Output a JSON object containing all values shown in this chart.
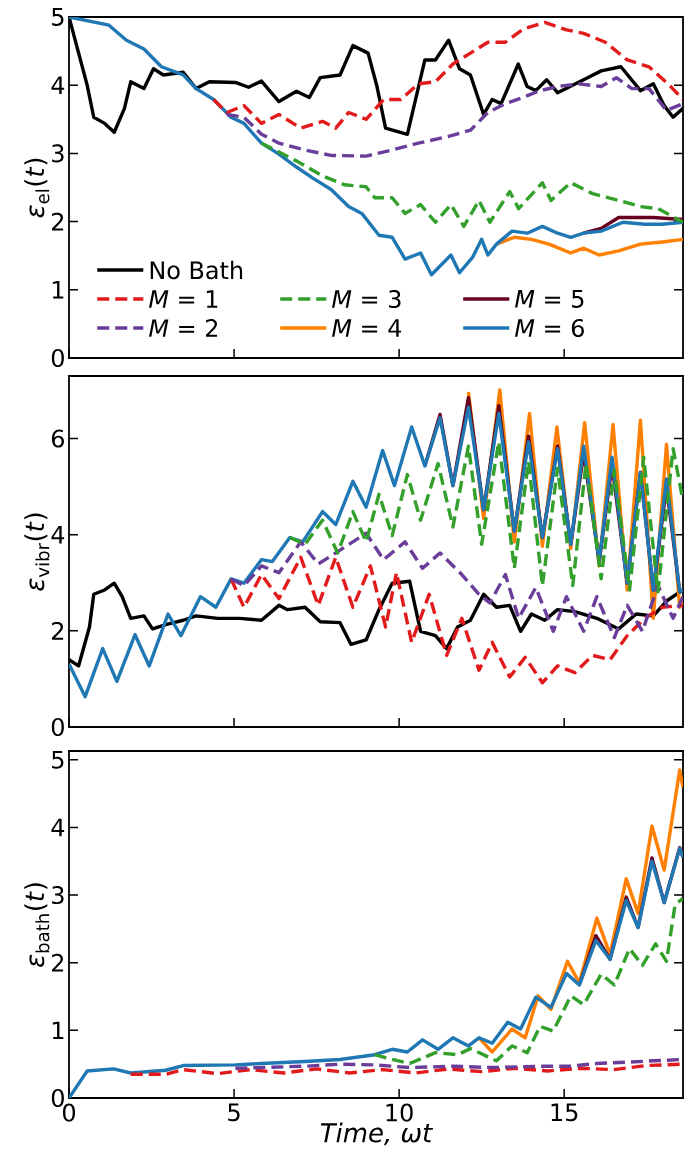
{
  "chart_data": [
    {
      "type": "line",
      "ylabel": "*ε*$_{el}$(*t*)",
      "xlim": [
        0,
        18.6
      ],
      "xticks": [
        0,
        5,
        10,
        15
      ],
      "ylim": [
        0,
        5
      ],
      "yticks": [
        0,
        1,
        2,
        3,
        4,
        5
      ],
      "tick_labels": "y",
      "legend": "bottom left",
      "series": [
        {
          "name": "No Bath",
          "color": "#000000",
          "x": [
            0,
            0.55,
            0.75,
            1.08,
            1.37,
            1.68,
            1.87,
            2.27,
            2.56,
            2.86,
            3.46,
            3.85,
            4.25,
            5.04,
            5.44,
            5.83,
            6.36,
            6.89,
            7.28,
            7.61,
            8.21,
            8.6,
            9.06,
            9.33,
            9.59,
            10.25,
            10.78,
            11.1,
            11.5,
            11.83,
            12.16,
            12.56,
            12.82,
            13.09,
            13.61,
            13.88,
            14.14,
            14.47,
            14.8,
            15.59,
            16.12,
            16.72,
            17.31,
            17.7,
            18.03,
            18.3,
            18.6
          ],
          "values": [
            5,
            4.0,
            3.53,
            3.44,
            3.31,
            3.66,
            4.05,
            3.95,
            4.24,
            4.15,
            4.19,
            3.95,
            4.05,
            4.04,
            3.97,
            4.06,
            3.76,
            3.91,
            3.82,
            4.11,
            4.15,
            4.58,
            4.47,
            3.98,
            3.37,
            3.28,
            4.37,
            4.37,
            4.66,
            4.24,
            4.15,
            3.57,
            3.79,
            3.73,
            4.31,
            3.98,
            3.92,
            4.08,
            3.89,
            4.08,
            4.21,
            4.27,
            3.92,
            4.02,
            3.7,
            3.53,
            3.66
          ]
        },
        {
          "name": "*M* = 1",
          "color": "#e31a1c",
          "line_style": "dashed",
          "x": [
            4.38,
            4.78,
            5.3,
            5.83,
            6.36,
            7.02,
            7.68,
            8.08,
            8.47,
            9.0,
            9.53,
            10.05,
            10.58,
            11.1,
            11.63,
            12.16,
            12.69,
            13.22,
            13.75,
            14.41,
            15.07,
            15.59,
            16.25,
            16.91,
            17.57,
            18.23,
            18.6
          ],
          "values": [
            3.79,
            3.6,
            3.7,
            3.44,
            3.57,
            3.37,
            3.47,
            3.37,
            3.6,
            3.5,
            3.79,
            3.79,
            4.02,
            4.05,
            4.31,
            4.47,
            4.63,
            4.63,
            4.82,
            4.92,
            4.81,
            4.76,
            4.63,
            4.37,
            4.27,
            3.98,
            3.79
          ]
        },
        {
          "name": "*M* = 2",
          "color": "#6a3d9a",
          "line_style": "dashed",
          "x": [
            4.78,
            5.3,
            5.83,
            6.36,
            7.15,
            7.94,
            9.0,
            9.79,
            10.58,
            11.5,
            12.16,
            12.69,
            13.22,
            13.75,
            14.27,
            14.8,
            15.46,
            16.12,
            16.58,
            17.05,
            17.57,
            18.1,
            18.6
          ],
          "values": [
            3.57,
            3.53,
            3.28,
            3.15,
            3.05,
            2.97,
            2.96,
            3.05,
            3.15,
            3.25,
            3.34,
            3.6,
            3.73,
            3.82,
            3.92,
            3.98,
            4.02,
            3.98,
            4.11,
            3.95,
            3.95,
            3.63,
            3.73
          ]
        },
        {
          "name": "*M* = 3",
          "color": "#33a02c",
          "line_style": "dashed",
          "x": [
            5.83,
            6.36,
            6.89,
            7.68,
            8.34,
            9.0,
            9.26,
            9.79,
            10.18,
            10.65,
            11.1,
            11.57,
            11.96,
            12.42,
            12.75,
            13.35,
            13.62,
            14.34,
            14.6,
            15.2,
            15.86,
            16.65,
            17.31,
            17.84,
            18.6
          ],
          "values": [
            3.15,
            3.02,
            2.89,
            2.67,
            2.54,
            2.51,
            2.35,
            2.35,
            2.12,
            2.25,
            1.99,
            2.25,
            1.93,
            2.31,
            1.99,
            2.44,
            2.19,
            2.57,
            2.31,
            2.57,
            2.41,
            2.31,
            2.22,
            2.19,
            1.99
          ]
        },
        {
          "name": "*M* = 4",
          "color": "#ff7f00",
          "x": [
            12.95,
            13.49,
            14.01,
            14.54,
            15.2,
            15.59,
            16.06,
            16.65,
            17.31,
            17.97,
            18.6
          ],
          "values": [
            1.67,
            1.77,
            1.74,
            1.67,
            1.54,
            1.61,
            1.51,
            1.57,
            1.67,
            1.7,
            1.74
          ]
        },
        {
          "name": "*M* = 5",
          "color": "#67001f",
          "x": [
            15.59,
            16.12,
            16.65,
            17.18,
            17.7,
            18.6
          ],
          "values": [
            1.83,
            1.9,
            2.06,
            2.06,
            2.06,
            2.03
          ]
        },
        {
          "name": "*M* = 6",
          "color": "#1f78b4",
          "x": [
            0,
            1.21,
            1.74,
            2.27,
            2.8,
            3.46,
            3.85,
            4.38,
            4.91,
            5.3,
            5.83,
            6.36,
            6.89,
            7.41,
            7.94,
            8.47,
            8.87,
            9.39,
            9.79,
            10.18,
            10.65,
            10.98,
            11.57,
            11.83,
            12.23,
            12.5,
            12.69,
            12.95,
            13.42,
            13.88,
            14.34,
            14.8,
            15.2,
            15.59,
            16.12,
            16.78,
            17.44,
            17.97,
            18.6
          ],
          "values": [
            5,
            4.88,
            4.66,
            4.53,
            4.27,
            4.15,
            3.95,
            3.79,
            3.53,
            3.44,
            3.15,
            2.99,
            2.8,
            2.63,
            2.47,
            2.22,
            2.12,
            1.8,
            1.77,
            1.45,
            1.54,
            1.22,
            1.51,
            1.25,
            1.48,
            1.74,
            1.51,
            1.67,
            1.86,
            1.83,
            1.93,
            1.83,
            1.77,
            1.83,
            1.86,
            1.99,
            1.96,
            1.96,
            1.99
          ]
        }
      ]
    },
    {
      "type": "line",
      "ylabel": "*ε*$_{vibr}$(*t*)",
      "xlim": [
        0,
        18.6
      ],
      "xticks": [
        0,
        5,
        10,
        15
      ],
      "ylim": [
        0,
        7.3
      ],
      "yticks": [
        0,
        2,
        4,
        6
      ],
      "tick_labels": "y",
      "series": [
        {
          "color": "#000000",
          "x": [
            0,
            0.29,
            0.62,
            0.75,
            1.08,
            1.37,
            1.61,
            1.87,
            2.27,
            2.53,
            2.93,
            3.46,
            3.85,
            4.51,
            5.17,
            5.83,
            6.36,
            6.62,
            7.15,
            7.61,
            8.21,
            8.54,
            9.0,
            9.39,
            9.79,
            10.32,
            10.65,
            11.1,
            11.44,
            11.77,
            12.16,
            12.56,
            12.95,
            13.35,
            13.68,
            14.01,
            14.41,
            14.8,
            15.33,
            15.99,
            16.65,
            17.18,
            17.7,
            18.1,
            18.6
          ],
          "values": [
            1.4,
            1.27,
            2.08,
            2.76,
            2.85,
            2.99,
            2.71,
            2.26,
            2.31,
            2.04,
            2.13,
            2.22,
            2.31,
            2.26,
            2.26,
            2.22,
            2.53,
            2.44,
            2.49,
            2.19,
            2.17,
            1.72,
            1.81,
            2.44,
            2.99,
            3.03,
            1.99,
            1.9,
            1.63,
            2.08,
            2.22,
            2.76,
            2.49,
            2.53,
            1.99,
            2.35,
            2.22,
            2.44,
            2.4,
            2.26,
            2.04,
            2.35,
            2.31,
            2.62,
            2.85
          ]
        },
        {
          "color": "#e31a1c",
          "line_style": "dashed",
          "x": [
            4.91,
            5.3,
            5.83,
            6.36,
            7.02,
            7.55,
            8.08,
            8.6,
            9.13,
            9.59,
            9.92,
            10.38,
            10.91,
            11.44,
            11.9,
            12.42,
            12.82,
            13.35,
            13.82,
            14.34,
            14.8,
            15.33,
            15.86,
            16.39,
            16.91,
            17.44,
            17.97,
            18.6
          ],
          "values": [
            3.08,
            2.49,
            3.17,
            2.67,
            3.53,
            2.53,
            3.53,
            2.49,
            3.35,
            2.08,
            3.21,
            1.76,
            2.76,
            1.49,
            2.26,
            1.18,
            1.76,
            1.04,
            1.45,
            0.92,
            1.27,
            1.13,
            1.49,
            1.4,
            1.9,
            2.26,
            2.49,
            2.53
          ]
        },
        {
          "color": "#6a3d9a",
          "line_style": "dashed",
          "x": [
            4.91,
            5.3,
            5.83,
            6.36,
            7.02,
            7.55,
            8.08,
            9.0,
            9.53,
            10.18,
            10.71,
            11.24,
            11.9,
            12.42,
            12.75,
            13.22,
            13.62,
            14.14,
            14.67,
            15.07,
            15.59,
            15.99,
            16.52,
            16.91,
            17.37,
            17.84,
            18.3,
            18.6
          ],
          "values": [
            3.08,
            2.94,
            3.35,
            3.21,
            3.85,
            3.39,
            3.62,
            4.03,
            3.48,
            3.85,
            3.3,
            3.62,
            3.17,
            2.76,
            2.58,
            3.17,
            2.26,
            2.9,
            1.99,
            2.71,
            1.99,
            2.71,
            1.86,
            2.53,
            1.99,
            2.94,
            2.26,
            2.71
          ]
        },
        {
          "color": "#33a02c",
          "line_style": "dashed",
          "x": [
            6.69,
            7.15,
            7.68,
            8.14,
            8.6,
            9.0,
            9.39,
            9.79,
            10.25,
            10.65,
            11.18,
            11.63,
            12.1,
            12.5,
            13.02,
            13.49,
            13.92,
            14.34,
            14.8,
            15.26,
            15.66,
            16.12,
            16.52,
            16.98,
            17.41,
            17.84,
            18.3,
            18.6
          ],
          "values": [
            3.94,
            3.8,
            4.3,
            3.62,
            4.48,
            3.85,
            4.84,
            3.98,
            5.25,
            4.3,
            5.48,
            4.16,
            5.84,
            3.8,
            5.93,
            3.3,
            5.52,
            2.94,
            5.38,
            2.94,
            5.48,
            3.08,
            5.34,
            2.85,
            5.61,
            2.81,
            5.79,
            4.7
          ]
        },
        {
          "color": "#ff7f00",
          "x": [
            12.1,
            12.56,
            13.05,
            13.49,
            13.95,
            14.34,
            14.78,
            15.2,
            15.62,
            16.06,
            16.48,
            16.91,
            17.31,
            17.7,
            18.1,
            18.5,
            18.6
          ],
          "values": [
            6.97,
            4.34,
            7.01,
            3.85,
            6.52,
            3.76,
            6.24,
            3.71,
            6.33,
            3.35,
            6.29,
            2.85,
            6.38,
            2.26,
            5.88,
            2.49,
            2.62
          ]
        },
        {
          "color": "#67001f",
          "x": [
            10.78,
            11.24,
            11.63,
            12.1,
            12.56,
            13.02,
            13.49,
            13.92,
            14.34,
            14.8,
            15.2,
            15.59,
            16.06,
            16.45,
            16.91,
            17.31,
            17.7,
            18.1,
            18.5,
            18.6
          ],
          "values": [
            5.43,
            6.5,
            5.02,
            6.85,
            4.52,
            6.68,
            4.07,
            6.05,
            3.94,
            5.84,
            3.8,
            5.7,
            3.44,
            5.45,
            2.99,
            5.3,
            2.85,
            5.0,
            2.81,
            2.85
          ]
        },
        {
          "color": "#1f78b4",
          "x": [
            0,
            0.49,
            1.02,
            1.45,
            2.0,
            2.43,
            3.0,
            3.39,
            3.98,
            4.45,
            4.91,
            5.3,
            5.83,
            6.16,
            6.69,
            7.08,
            7.68,
            8.08,
            8.6,
            9.0,
            9.5,
            9.86,
            10.38,
            10.78,
            11.24,
            11.63,
            12.1,
            12.56,
            13.02,
            13.49,
            13.92,
            14.34,
            14.8,
            15.2,
            15.59,
            16.06,
            16.45,
            16.91,
            17.31,
            17.7,
            18.1,
            18.5,
            18.6
          ],
          "values": [
            1.31,
            0.63,
            1.63,
            0.95,
            1.92,
            1.27,
            2.35,
            1.9,
            2.71,
            2.49,
            3.08,
            2.99,
            3.48,
            3.44,
            3.94,
            3.85,
            4.48,
            4.21,
            5.11,
            4.57,
            5.75,
            5.02,
            6.24,
            5.43,
            6.43,
            5.02,
            6.65,
            4.52,
            6.52,
            4.07,
            5.93,
            3.94,
            5.79,
            3.8,
            5.84,
            3.44,
            5.61,
            2.99,
            5.29,
            2.85,
            5.16,
            2.81,
            2.85
          ]
        }
      ]
    },
    {
      "type": "line",
      "ylabel": "*ε*$_{bath}$(*t*)",
      "xlabel": "Time, ωt",
      "xlim": [
        0,
        18.6
      ],
      "xticks": [
        0,
        5,
        10,
        15
      ],
      "ylim": [
        0,
        5.13
      ],
      "yticks": [
        0,
        1,
        2,
        3,
        4,
        5
      ],
      "series": [
        {
          "color": "#e31a1c",
          "line_style": "dashed",
          "x": [
            1.87,
            2.93,
            3.46,
            4.5,
            5.5,
            6.5,
            7.5,
            8.5,
            9.5,
            10.5,
            11.5,
            12.5,
            13.5,
            14.5,
            15.5,
            16.5,
            17.5,
            18.6
          ],
          "values": [
            0.35,
            0.35,
            0.42,
            0.36,
            0.42,
            0.37,
            0.43,
            0.37,
            0.42,
            0.37,
            0.43,
            0.39,
            0.44,
            0.4,
            0.44,
            0.42,
            0.48,
            0.5
          ]
        },
        {
          "color": "#6a3d9a",
          "line_style": "dashed",
          "x": [
            5.04,
            7.15,
            8.21,
            9.26,
            10.32,
            11.63,
            12.82,
            14.27,
            15.2,
            15.99,
            16.91,
            17.7,
            18.6
          ],
          "values": [
            0.44,
            0.47,
            0.5,
            0.49,
            0.45,
            0.47,
            0.45,
            0.47,
            0.47,
            0.51,
            0.53,
            0.55,
            0.57
          ]
        },
        {
          "color": "#33a02c",
          "line_style": "dashed",
          "x": [
            9.26,
            9.79,
            10.32,
            11.1,
            11.77,
            12.16,
            12.95,
            13.42,
            13.88,
            14.27,
            14.67,
            15.2,
            15.59,
            16.12,
            16.52,
            16.98,
            17.37,
            17.77,
            18.1,
            18.36,
            18.6
          ],
          "values": [
            0.64,
            0.57,
            0.51,
            0.67,
            0.64,
            0.73,
            0.55,
            0.77,
            0.67,
            1.06,
            0.99,
            1.51,
            1.38,
            1.83,
            1.67,
            2.21,
            1.96,
            2.28,
            2.02,
            2.86,
            2.95
          ]
        },
        {
          "color": "#ff7f00",
          "x": [
            12.42,
            12.82,
            13.42,
            13.82,
            14.21,
            14.6,
            15.1,
            15.46,
            15.99,
            16.39,
            16.88,
            17.24,
            17.66,
            18.03,
            18.5,
            18.6
          ],
          "values": [
            0.89,
            0.68,
            1.02,
            0.89,
            1.51,
            1.31,
            2.02,
            1.7,
            2.66,
            2.12,
            3.24,
            2.73,
            4.02,
            3.37,
            4.85,
            4.59
          ]
        },
        {
          "color": "#67001f",
          "x": [
            15.46,
            15.96,
            16.39,
            16.88,
            17.24,
            17.66,
            18.03,
            18.5,
            18.6
          ],
          "values": [
            1.67,
            2.4,
            2.05,
            2.97,
            2.52,
            3.55,
            2.89,
            3.7,
            3.56
          ]
        },
        {
          "color": "#1f78b4",
          "x": [
            0,
            0.55,
            1.35,
            1.87,
            2.93,
            3.46,
            5.04,
            5.83,
            7.15,
            8.21,
            9.26,
            9.79,
            10.25,
            10.71,
            11.18,
            11.63,
            12.1,
            12.42,
            12.82,
            13.29,
            13.68,
            14.14,
            14.6,
            15.07,
            15.46,
            15.96,
            16.39,
            16.88,
            17.24,
            17.66,
            18.03,
            18.5,
            18.6
          ],
          "values": [
            0,
            0.4,
            0.43,
            0.37,
            0.41,
            0.48,
            0.49,
            0.51,
            0.54,
            0.57,
            0.64,
            0.72,
            0.68,
            0.86,
            0.72,
            0.89,
            0.77,
            0.89,
            0.81,
            1.12,
            1.02,
            1.49,
            1.34,
            1.84,
            1.67,
            2.33,
            2.05,
            2.92,
            2.52,
            3.5,
            2.89,
            3.69,
            3.56
          ]
        }
      ]
    }
  ]
}
